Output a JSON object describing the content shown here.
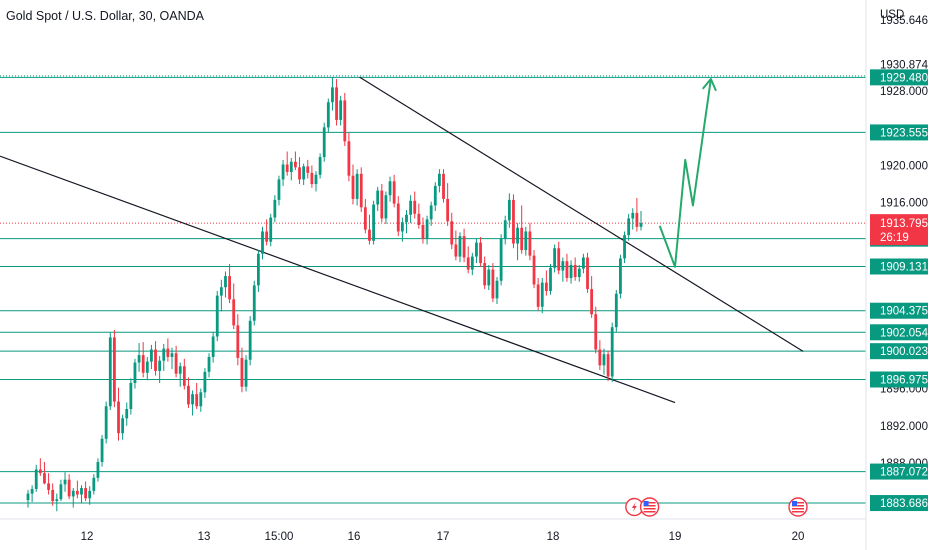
{
  "header": {
    "title": "Gold Spot / U.S. Dollar, 30, OANDA",
    "currency": "USD"
  },
  "colors": {
    "up": "#089981",
    "down": "#f23645",
    "level_line": "#089981",
    "channel": "#131722",
    "projection": "#26a96c",
    "current_tag": "#f23645"
  },
  "events": [
    {
      "icon": "lightning-event-icon",
      "x": "18 16:00"
    },
    {
      "icon": "us-flag-event-icon",
      "x": "18 19:00"
    },
    {
      "icon": "us-flag-event-icon",
      "x": "20 00:00"
    }
  ],
  "chart_data": {
    "type": "candlestick",
    "title": "Gold Spot / U.S. Dollar, 30, OANDA",
    "ylabel": "USD",
    "ylim": [
      1882.4,
      1937.8
    ],
    "y_ticks": [
      "1935.646",
      "1930.874",
      "1928.000",
      "1920.000",
      "1916.000",
      "1896.000",
      "1892.000",
      "1888.000"
    ],
    "x_ticks": [
      "12",
      "13",
      "15:00",
      "16",
      "17",
      "18",
      "19",
      "20"
    ],
    "horizontal_levels": [
      1929.48,
      1923.555,
      1912.127,
      1909.131,
      1904.375,
      1902.054,
      1900.023,
      1896.975,
      1887.072,
      1883.686
    ],
    "current_price": {
      "value": "1913.795",
      "countdown": "26:19"
    },
    "channel": {
      "upper": [
        [
          "16 01:30",
          1929.5
        ],
        [
          "20 01:00",
          1900.0
        ]
      ],
      "lower": [
        [
          "15 18:00",
          1921.0
        ],
        [
          "19 00:00",
          1894.5
        ]
      ]
    },
    "projection": [
      [
        "18 21:00",
        1913.5
      ],
      [
        "19 00:00",
        1909.1
      ],
      [
        "19 02:00",
        1920.6
      ],
      [
        "19 03:30",
        1915.7
      ],
      [
        "19 07:00",
        1929.3
      ]
    ],
    "candles_ohlc": [
      [
        1884.0,
        1885.1,
        1883.2,
        1884.7
      ],
      [
        1884.7,
        1885.6,
        1883.8,
        1885.2
      ],
      [
        1885.2,
        1887.8,
        1884.9,
        1887.3
      ],
      [
        1887.3,
        1888.5,
        1886.6,
        1886.9
      ],
      [
        1886.9,
        1888.1,
        1885.7,
        1885.8
      ],
      [
        1885.8,
        1886.9,
        1884.6,
        1885.1
      ],
      [
        1885.1,
        1885.8,
        1883.4,
        1883.9
      ],
      [
        1883.9,
        1884.7,
        1882.8,
        1884.1
      ],
      [
        1884.1,
        1886.2,
        1883.9,
        1885.7
      ],
      [
        1885.7,
        1887.0,
        1884.9,
        1886.2
      ],
      [
        1886.2,
        1886.8,
        1884.1,
        1884.4
      ],
      [
        1884.4,
        1885.3,
        1883.2,
        1885.0
      ],
      [
        1885.0,
        1886.1,
        1884.2,
        1884.6
      ],
      [
        1884.6,
        1885.6,
        1883.7,
        1885.3
      ],
      [
        1885.3,
        1886.0,
        1883.9,
        1884.2
      ],
      [
        1884.2,
        1885.5,
        1883.5,
        1885.0
      ],
      [
        1885.0,
        1886.8,
        1884.6,
        1886.4
      ],
      [
        1886.4,
        1888.5,
        1886.0,
        1888.1
      ],
      [
        1888.1,
        1891.0,
        1887.6,
        1890.6
      ],
      [
        1890.6,
        1894.6,
        1890.1,
        1894.1
      ],
      [
        1894.1,
        1902.0,
        1893.7,
        1901.5
      ],
      [
        1901.5,
        1902.3,
        1894.0,
        1894.6
      ],
      [
        1894.6,
        1896.1,
        1890.4,
        1891.2
      ],
      [
        1891.2,
        1893.2,
        1890.5,
        1892.8
      ],
      [
        1892.8,
        1894.5,
        1892.0,
        1893.8
      ],
      [
        1893.8,
        1897.1,
        1893.2,
        1896.6
      ],
      [
        1896.6,
        1899.2,
        1896.0,
        1898.8
      ],
      [
        1898.8,
        1900.9,
        1897.8,
        1899.6
      ],
      [
        1899.6,
        1901.0,
        1897.2,
        1897.7
      ],
      [
        1897.7,
        1899.4,
        1896.9,
        1898.9
      ],
      [
        1898.9,
        1900.7,
        1898.1,
        1900.2
      ],
      [
        1900.2,
        1901.1,
        1897.4,
        1897.9
      ],
      [
        1897.9,
        1899.5,
        1896.6,
        1899.0
      ],
      [
        1899.0,
        1900.8,
        1897.9,
        1900.3
      ],
      [
        1900.3,
        1901.4,
        1898.9,
        1899.4
      ],
      [
        1899.4,
        1900.4,
        1898.1,
        1899.8
      ],
      [
        1899.8,
        1900.6,
        1897.2,
        1897.6
      ],
      [
        1897.6,
        1898.8,
        1896.2,
        1898.4
      ],
      [
        1898.4,
        1899.2,
        1895.9,
        1896.3
      ],
      [
        1896.3,
        1897.2,
        1893.9,
        1894.3
      ],
      [
        1894.3,
        1895.8,
        1893.1,
        1895.4
      ],
      [
        1895.4,
        1896.6,
        1893.8,
        1894.1
      ],
      [
        1894.1,
        1896.0,
        1893.5,
        1895.6
      ],
      [
        1895.6,
        1898.2,
        1895.0,
        1897.8
      ],
      [
        1897.8,
        1899.8,
        1897.2,
        1899.4
      ],
      [
        1899.4,
        1902.1,
        1898.8,
        1901.6
      ],
      [
        1901.6,
        1906.5,
        1901.1,
        1906.0
      ],
      [
        1906.0,
        1907.7,
        1904.3,
        1906.9
      ],
      [
        1906.9,
        1908.6,
        1905.8,
        1908.1
      ],
      [
        1908.1,
        1909.4,
        1905.2,
        1905.6
      ],
      [
        1905.6,
        1907.3,
        1902.4,
        1902.8
      ],
      [
        1902.8,
        1904.0,
        1898.5,
        1899.3
      ],
      [
        1899.3,
        1900.4,
        1895.6,
        1896.2
      ],
      [
        1896.2,
        1899.6,
        1895.7,
        1899.1
      ],
      [
        1899.1,
        1903.8,
        1898.5,
        1903.3
      ],
      [
        1903.3,
        1907.6,
        1902.8,
        1907.1
      ],
      [
        1907.1,
        1910.9,
        1906.4,
        1910.5
      ],
      [
        1910.5,
        1913.4,
        1909.9,
        1912.9
      ],
      [
        1912.9,
        1914.2,
        1911.4,
        1911.8
      ],
      [
        1911.8,
        1914.8,
        1911.3,
        1914.4
      ],
      [
        1914.4,
        1916.8,
        1913.9,
        1916.3
      ],
      [
        1916.3,
        1918.9,
        1915.7,
        1918.5
      ],
      [
        1918.5,
        1920.6,
        1917.8,
        1920.1
      ],
      [
        1920.1,
        1921.5,
        1918.9,
        1919.3
      ],
      [
        1919.3,
        1920.8,
        1918.4,
        1920.4
      ],
      [
        1920.4,
        1921.5,
        1919.5,
        1919.8
      ],
      [
        1919.8,
        1920.9,
        1918.0,
        1918.5
      ],
      [
        1918.5,
        1920.2,
        1917.9,
        1919.9
      ],
      [
        1919.9,
        1920.6,
        1918.6,
        1919.2
      ],
      [
        1919.2,
        1920.0,
        1917.6,
        1918.0
      ],
      [
        1918.0,
        1919.4,
        1917.2,
        1919.0
      ],
      [
        1919.0,
        1921.3,
        1918.6,
        1920.9
      ],
      [
        1920.9,
        1924.6,
        1920.4,
        1924.1
      ],
      [
        1924.1,
        1927.2,
        1923.6,
        1926.8
      ],
      [
        1926.8,
        1929.5,
        1925.9,
        1928.4
      ],
      [
        1928.4,
        1929.3,
        1924.3,
        1924.9
      ],
      [
        1924.9,
        1927.5,
        1924.3,
        1927.0
      ],
      [
        1927.0,
        1927.8,
        1922.1,
        1922.6
      ],
      [
        1922.6,
        1923.5,
        1918.3,
        1918.9
      ],
      [
        1918.9,
        1920.1,
        1915.8,
        1916.4
      ],
      [
        1916.4,
        1919.6,
        1915.7,
        1919.1
      ],
      [
        1919.1,
        1919.8,
        1915.0,
        1915.5
      ],
      [
        1915.5,
        1916.4,
        1912.7,
        1913.1
      ],
      [
        1913.1,
        1914.7,
        1911.5,
        1911.9
      ],
      [
        1911.9,
        1916.2,
        1911.5,
        1915.8
      ],
      [
        1915.8,
        1917.7,
        1915.1,
        1917.3
      ],
      [
        1917.3,
        1918.0,
        1913.9,
        1914.3
      ],
      [
        1914.3,
        1917.2,
        1913.7,
        1916.8
      ],
      [
        1916.8,
        1918.8,
        1916.1,
        1918.3
      ],
      [
        1918.3,
        1919.0,
        1915.5,
        1915.9
      ],
      [
        1915.9,
        1916.7,
        1912.4,
        1912.9
      ],
      [
        1912.9,
        1914.4,
        1911.8,
        1913.9
      ],
      [
        1913.9,
        1915.2,
        1912.7,
        1914.7
      ],
      [
        1914.7,
        1916.8,
        1913.8,
        1916.2
      ],
      [
        1916.2,
        1917.2,
        1914.3,
        1914.8
      ],
      [
        1914.8,
        1915.9,
        1913.2,
        1913.6
      ],
      [
        1913.6,
        1914.4,
        1911.6,
        1912.1
      ],
      [
        1912.1,
        1914.6,
        1911.5,
        1914.2
      ],
      [
        1914.2,
        1916.1,
        1913.5,
        1915.7
      ],
      [
        1915.7,
        1918.2,
        1915.1,
        1917.8
      ],
      [
        1917.8,
        1919.6,
        1917.1,
        1919.1
      ],
      [
        1919.1,
        1919.6,
        1916.0,
        1916.4
      ],
      [
        1916.4,
        1918.1,
        1913.5,
        1914.0
      ],
      [
        1914.0,
        1914.9,
        1911.0,
        1911.5
      ],
      [
        1911.5,
        1913.0,
        1909.8,
        1910.2
      ],
      [
        1910.2,
        1912.8,
        1909.6,
        1912.4
      ],
      [
        1912.4,
        1913.2,
        1909.6,
        1910.1
      ],
      [
        1910.1,
        1911.3,
        1908.4,
        1908.8
      ],
      [
        1908.8,
        1910.6,
        1908.2,
        1910.2
      ],
      [
        1910.2,
        1912.1,
        1909.5,
        1911.7
      ],
      [
        1911.7,
        1912.3,
        1909.1,
        1909.5
      ],
      [
        1909.5,
        1910.2,
        1906.7,
        1907.1
      ],
      [
        1907.1,
        1909.3,
        1906.6,
        1908.8
      ],
      [
        1908.8,
        1909.5,
        1905.3,
        1905.7
      ],
      [
        1905.7,
        1908.0,
        1905.1,
        1907.6
      ],
      [
        1907.6,
        1912.6,
        1907.1,
        1912.1
      ],
      [
        1912.1,
        1914.6,
        1911.5,
        1914.1
      ],
      [
        1914.1,
        1917.0,
        1913.3,
        1916.3
      ],
      [
        1916.3,
        1916.9,
        1911.1,
        1911.6
      ],
      [
        1911.6,
        1913.8,
        1909.8,
        1913.3
      ],
      [
        1913.3,
        1915.7,
        1910.5,
        1910.9
      ],
      [
        1910.9,
        1913.4,
        1910.3,
        1912.9
      ],
      [
        1912.9,
        1913.8,
        1909.8,
        1910.3
      ],
      [
        1910.3,
        1910.9,
        1906.8,
        1907.2
      ],
      [
        1907.2,
        1907.9,
        1904.4,
        1904.8
      ],
      [
        1904.8,
        1907.9,
        1904.1,
        1907.4
      ],
      [
        1907.4,
        1908.7,
        1906.0,
        1906.5
      ],
      [
        1906.5,
        1909.4,
        1906.1,
        1909.0
      ],
      [
        1909.0,
        1911.5,
        1908.5,
        1911.1
      ],
      [
        1911.1,
        1911.8,
        1908.3,
        1908.7
      ],
      [
        1908.7,
        1910.1,
        1907.5,
        1909.7
      ],
      [
        1909.7,
        1910.5,
        1907.5,
        1907.9
      ],
      [
        1907.9,
        1909.8,
        1907.3,
        1909.3
      ],
      [
        1909.3,
        1910.1,
        1907.6,
        1908.0
      ],
      [
        1908.0,
        1909.3,
        1907.5,
        1908.9
      ],
      [
        1908.9,
        1910.5,
        1908.4,
        1910.1
      ],
      [
        1910.1,
        1910.6,
        1906.3,
        1906.7
      ],
      [
        1906.7,
        1908.1,
        1903.6,
        1904.0
      ],
      [
        1904.0,
        1904.8,
        1899.8,
        1900.2
      ],
      [
        1900.2,
        1901.2,
        1898.0,
        1898.5
      ],
      [
        1898.5,
        1900.3,
        1897.5,
        1899.7
      ],
      [
        1899.7,
        1900.1,
        1896.8,
        1897.3
      ],
      [
        1897.3,
        1903.1,
        1896.7,
        1902.6
      ],
      [
        1902.6,
        1906.6,
        1902.1,
        1906.2
      ],
      [
        1906.2,
        1910.4,
        1905.7,
        1910.0
      ],
      [
        1910.0,
        1912.9,
        1909.5,
        1912.5
      ],
      [
        1912.5,
        1914.8,
        1911.9,
        1914.3
      ],
      [
        1914.3,
        1915.4,
        1913.1,
        1914.9
      ],
      [
        1914.9,
        1916.5,
        1912.9,
        1913.4
      ],
      [
        1913.4,
        1915.1,
        1913.0,
        1913.8
      ]
    ]
  }
}
